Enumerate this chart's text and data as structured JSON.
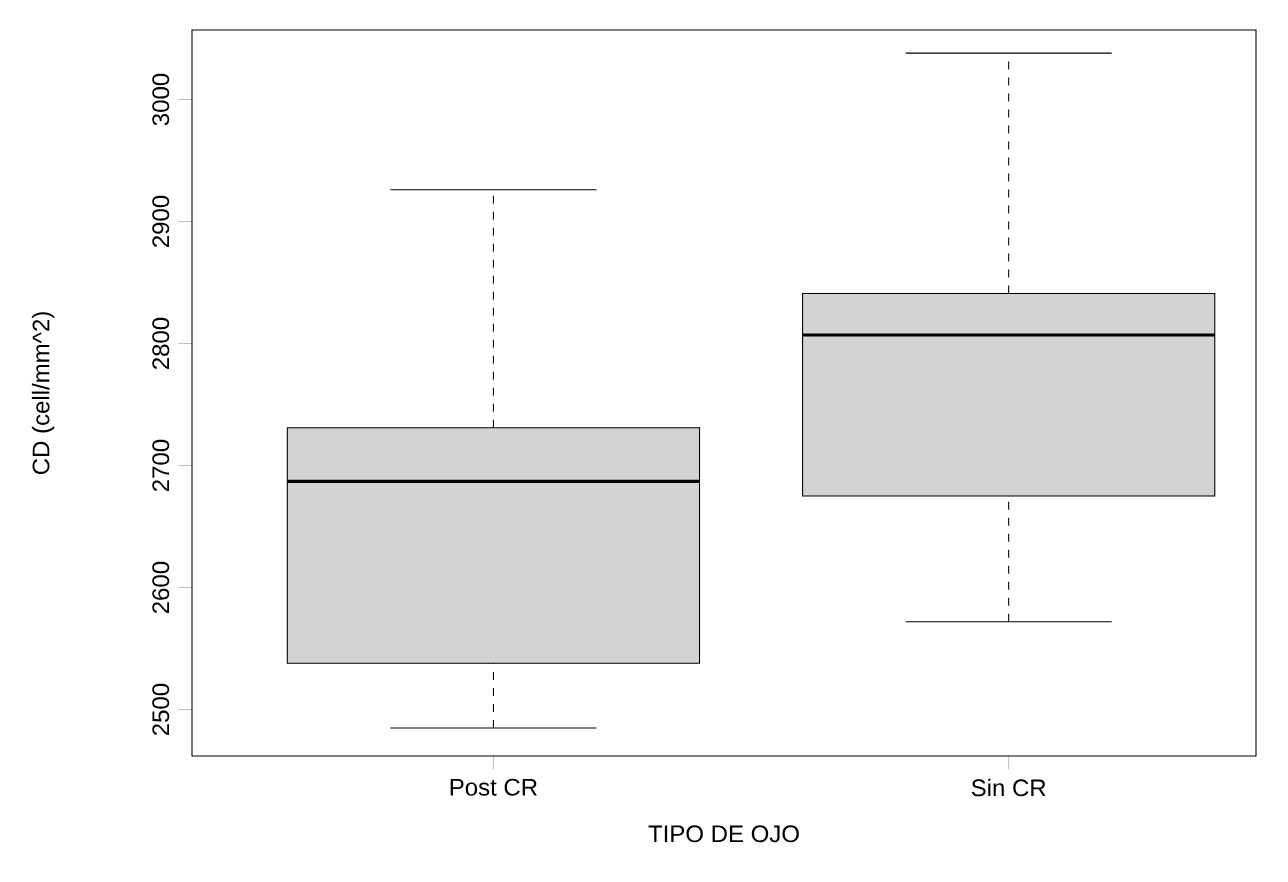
{
  "chart_data": {
    "type": "box",
    "xlabel": "TIPO DE OJO",
    "ylabel": "CD (cell/mm^2)",
    "categories": [
      "Post CR",
      "Sin CR"
    ],
    "color": "#d3d3d3",
    "boxes": [
      {
        "low": 2485,
        "q1": 2538,
        "median": 2687,
        "q3": 2731,
        "high": 2926
      },
      {
        "low": 2572,
        "q1": 2675,
        "median": 2807,
        "q3": 2841,
        "high": 3038
      }
    ],
    "ylim": [
      2462,
      3057
    ],
    "yticks": [
      2500,
      2600,
      2700,
      2800,
      2900,
      3000
    ]
  }
}
